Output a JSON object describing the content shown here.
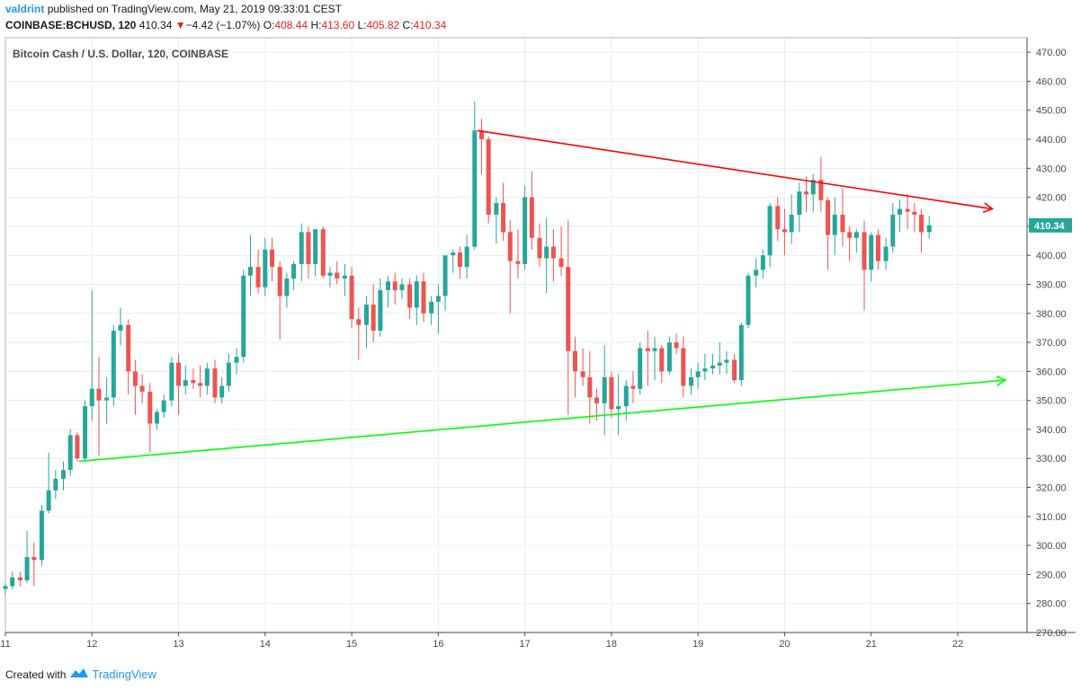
{
  "header": {
    "user": "valdrint",
    "published_text": "published on TradingView.com, May 21, 2019 09:33:01 CEST",
    "symbol": "COINBASE:BCHUSD, 120",
    "last": "410.34",
    "change_arrow": "▼",
    "change": "−4.42 (−1.07%)",
    "o_label": "O:",
    "o_value": "408.44",
    "h_label": "H:",
    "h_value": "413.60",
    "l_label": "L:",
    "l_value": "405.82",
    "c_label": "C:",
    "c_value": "410.34"
  },
  "chart_title": "Bitcoin Cash / U.S. Dollar, 120, COINBASE",
  "price_tag": "410.34",
  "footer": {
    "created_with": "Created with",
    "brand": "TradingView"
  },
  "colors": {
    "up": "#26a69a",
    "down": "#ef5350",
    "resistance": "#ff0000",
    "support": "#00ff00",
    "grid": "#e8ecef",
    "price_tag": "#26a69a"
  },
  "chart_data": {
    "type": "candlestick",
    "title": "Bitcoin Cash / U.S. Dollar, 120, COINBASE",
    "interval_minutes": 120,
    "ylim": [
      270,
      475
    ],
    "y_ticks": [
      270,
      280,
      290,
      300,
      310,
      320,
      330,
      340,
      350,
      360,
      370,
      380,
      390,
      400,
      410,
      420,
      430,
      440,
      450,
      460,
      470
    ],
    "x_tick_labels": [
      "11",
      "12",
      "13",
      "14",
      "15",
      "16",
      "17",
      "18",
      "19",
      "20",
      "21",
      "22"
    ],
    "x_tick_days": [
      11,
      12,
      13,
      14,
      15,
      16,
      17,
      18,
      19,
      20,
      21,
      22
    ],
    "x_range_days": [
      11.0,
      22.8
    ],
    "grid": true,
    "last_price": 410.34,
    "candles": [
      {
        "t": 11.0,
        "o": 285,
        "h": 287,
        "l": 283,
        "c": 286
      },
      {
        "t": 11.08,
        "o": 286,
        "h": 291,
        "l": 285,
        "c": 289
      },
      {
        "t": 11.17,
        "o": 289,
        "h": 291,
        "l": 286,
        "c": 288
      },
      {
        "t": 11.25,
        "o": 288,
        "h": 305,
        "l": 287,
        "c": 296
      },
      {
        "t": 11.33,
        "o": 296,
        "h": 301,
        "l": 286,
        "c": 295
      },
      {
        "t": 11.42,
        "o": 295,
        "h": 314,
        "l": 293,
        "c": 312
      },
      {
        "t": 11.5,
        "o": 312,
        "h": 332,
        "l": 311,
        "c": 319
      },
      {
        "t": 11.58,
        "o": 319,
        "h": 326,
        "l": 316,
        "c": 323
      },
      {
        "t": 11.67,
        "o": 323,
        "h": 329,
        "l": 319,
        "c": 326
      },
      {
        "t": 11.75,
        "o": 326,
        "h": 340,
        "l": 324,
        "c": 338
      },
      {
        "t": 11.83,
        "o": 338,
        "h": 339,
        "l": 329,
        "c": 330
      },
      {
        "t": 11.92,
        "o": 330,
        "h": 350,
        "l": 329,
        "c": 348
      },
      {
        "t": 12.0,
        "o": 348,
        "h": 388,
        "l": 343,
        "c": 354
      },
      {
        "t": 12.08,
        "o": 354,
        "h": 365,
        "l": 331,
        "c": 350
      },
      {
        "t": 12.17,
        "o": 350,
        "h": 358,
        "l": 342,
        "c": 351
      },
      {
        "t": 12.25,
        "o": 351,
        "h": 376,
        "l": 348,
        "c": 374
      },
      {
        "t": 12.33,
        "o": 374,
        "h": 382,
        "l": 369,
        "c": 376
      },
      {
        "t": 12.42,
        "o": 376,
        "h": 378,
        "l": 352,
        "c": 360
      },
      {
        "t": 12.5,
        "o": 360,
        "h": 364,
        "l": 345,
        "c": 355
      },
      {
        "t": 12.58,
        "o": 355,
        "h": 359,
        "l": 349,
        "c": 353
      },
      {
        "t": 12.67,
        "o": 353,
        "h": 356,
        "l": 332,
        "c": 342
      },
      {
        "t": 12.75,
        "o": 342,
        "h": 347,
        "l": 340,
        "c": 346
      },
      {
        "t": 12.83,
        "o": 346,
        "h": 352,
        "l": 344,
        "c": 350
      },
      {
        "t": 12.92,
        "o": 350,
        "h": 365,
        "l": 348,
        "c": 363
      },
      {
        "t": 13.0,
        "o": 363,
        "h": 366,
        "l": 345,
        "c": 355
      },
      {
        "t": 13.08,
        "o": 355,
        "h": 362,
        "l": 352,
        "c": 357
      },
      {
        "t": 13.17,
        "o": 357,
        "h": 361,
        "l": 354,
        "c": 356
      },
      {
        "t": 13.25,
        "o": 356,
        "h": 362,
        "l": 351,
        "c": 355
      },
      {
        "t": 13.33,
        "o": 355,
        "h": 363,
        "l": 352,
        "c": 361
      },
      {
        "t": 13.42,
        "o": 361,
        "h": 364,
        "l": 349,
        "c": 351
      },
      {
        "t": 13.5,
        "o": 351,
        "h": 358,
        "l": 349,
        "c": 355
      },
      {
        "t": 13.58,
        "o": 355,
        "h": 366,
        "l": 353,
        "c": 363
      },
      {
        "t": 13.67,
        "o": 363,
        "h": 368,
        "l": 359,
        "c": 365
      },
      {
        "t": 13.75,
        "o": 365,
        "h": 395,
        "l": 363,
        "c": 393
      },
      {
        "t": 13.83,
        "o": 393,
        "h": 407,
        "l": 386,
        "c": 396
      },
      {
        "t": 13.92,
        "o": 396,
        "h": 402,
        "l": 387,
        "c": 389
      },
      {
        "t": 14.0,
        "o": 389,
        "h": 406,
        "l": 386,
        "c": 402
      },
      {
        "t": 14.08,
        "o": 402,
        "h": 406,
        "l": 391,
        "c": 396
      },
      {
        "t": 14.17,
        "o": 396,
        "h": 398,
        "l": 371,
        "c": 386
      },
      {
        "t": 14.25,
        "o": 386,
        "h": 394,
        "l": 382,
        "c": 392
      },
      {
        "t": 14.33,
        "o": 392,
        "h": 398,
        "l": 388,
        "c": 397
      },
      {
        "t": 14.42,
        "o": 397,
        "h": 411,
        "l": 391,
        "c": 408
      },
      {
        "t": 14.5,
        "o": 408,
        "h": 410,
        "l": 392,
        "c": 397
      },
      {
        "t": 14.58,
        "o": 397,
        "h": 409,
        "l": 393,
        "c": 409
      },
      {
        "t": 14.67,
        "o": 409,
        "h": 410,
        "l": 392,
        "c": 393
      },
      {
        "t": 14.75,
        "o": 393,
        "h": 396,
        "l": 389,
        "c": 394
      },
      {
        "t": 14.83,
        "o": 394,
        "h": 398,
        "l": 390,
        "c": 392
      },
      {
        "t": 14.92,
        "o": 392,
        "h": 397,
        "l": 386,
        "c": 393
      },
      {
        "t": 15.0,
        "o": 393,
        "h": 396,
        "l": 375,
        "c": 378
      },
      {
        "t": 15.08,
        "o": 378,
        "h": 382,
        "l": 364,
        "c": 376
      },
      {
        "t": 15.17,
        "o": 376,
        "h": 386,
        "l": 368,
        "c": 383
      },
      {
        "t": 15.25,
        "o": 383,
        "h": 390,
        "l": 370,
        "c": 374
      },
      {
        "t": 15.33,
        "o": 374,
        "h": 392,
        "l": 372,
        "c": 388
      },
      {
        "t": 15.42,
        "o": 388,
        "h": 393,
        "l": 382,
        "c": 391
      },
      {
        "t": 15.5,
        "o": 391,
        "h": 394,
        "l": 383,
        "c": 388
      },
      {
        "t": 15.58,
        "o": 388,
        "h": 392,
        "l": 385,
        "c": 390
      },
      {
        "t": 15.67,
        "o": 390,
        "h": 392,
        "l": 378,
        "c": 382
      },
      {
        "t": 15.75,
        "o": 382,
        "h": 393,
        "l": 376,
        "c": 391
      },
      {
        "t": 15.83,
        "o": 391,
        "h": 394,
        "l": 377,
        "c": 380
      },
      {
        "t": 15.92,
        "o": 380,
        "h": 386,
        "l": 376,
        "c": 384
      },
      {
        "t": 16.0,
        "o": 384,
        "h": 390,
        "l": 373,
        "c": 386
      },
      {
        "t": 16.08,
        "o": 386,
        "h": 400,
        "l": 381,
        "c": 400
      },
      {
        "t": 16.17,
        "o": 400,
        "h": 402,
        "l": 394,
        "c": 401
      },
      {
        "t": 16.25,
        "o": 401,
        "h": 403,
        "l": 392,
        "c": 396
      },
      {
        "t": 16.33,
        "o": 396,
        "h": 407,
        "l": 392,
        "c": 403
      },
      {
        "t": 16.42,
        "o": 403,
        "h": 453,
        "l": 402,
        "c": 443
      },
      {
        "t": 16.5,
        "o": 443,
        "h": 447,
        "l": 428,
        "c": 440
      },
      {
        "t": 16.58,
        "o": 440,
        "h": 441,
        "l": 411,
        "c": 414
      },
      {
        "t": 16.67,
        "o": 414,
        "h": 420,
        "l": 404,
        "c": 418
      },
      {
        "t": 16.75,
        "o": 418,
        "h": 425,
        "l": 405,
        "c": 408
      },
      {
        "t": 16.83,
        "o": 408,
        "h": 412,
        "l": 380,
        "c": 398
      },
      {
        "t": 16.92,
        "o": 398,
        "h": 409,
        "l": 392,
        "c": 397
      },
      {
        "t": 17.0,
        "o": 397,
        "h": 424,
        "l": 395,
        "c": 420
      },
      {
        "t": 17.08,
        "o": 420,
        "h": 429,
        "l": 402,
        "c": 406
      },
      {
        "t": 17.17,
        "o": 406,
        "h": 411,
        "l": 396,
        "c": 399
      },
      {
        "t": 17.25,
        "o": 399,
        "h": 413,
        "l": 387,
        "c": 403
      },
      {
        "t": 17.33,
        "o": 403,
        "h": 409,
        "l": 391,
        "c": 399
      },
      {
        "t": 17.42,
        "o": 399,
        "h": 410,
        "l": 393,
        "c": 396
      },
      {
        "t": 17.5,
        "o": 396,
        "h": 412,
        "l": 345,
        "c": 367
      },
      {
        "t": 17.58,
        "o": 367,
        "h": 372,
        "l": 351,
        "c": 360
      },
      {
        "t": 17.67,
        "o": 360,
        "h": 368,
        "l": 355,
        "c": 358
      },
      {
        "t": 17.75,
        "o": 358,
        "h": 367,
        "l": 342,
        "c": 351
      },
      {
        "t": 17.83,
        "o": 351,
        "h": 354,
        "l": 343,
        "c": 349
      },
      {
        "t": 17.92,
        "o": 349,
        "h": 369,
        "l": 338,
        "c": 358
      },
      {
        "t": 18.0,
        "o": 358,
        "h": 360,
        "l": 344,
        "c": 347
      },
      {
        "t": 18.08,
        "o": 347,
        "h": 359,
        "l": 338,
        "c": 348
      },
      {
        "t": 18.17,
        "o": 348,
        "h": 357,
        "l": 343,
        "c": 355
      },
      {
        "t": 18.25,
        "o": 355,
        "h": 360,
        "l": 349,
        "c": 354
      },
      {
        "t": 18.33,
        "o": 354,
        "h": 370,
        "l": 352,
        "c": 368
      },
      {
        "t": 18.42,
        "o": 368,
        "h": 374,
        "l": 355,
        "c": 367
      },
      {
        "t": 18.5,
        "o": 367,
        "h": 372,
        "l": 357,
        "c": 368
      },
      {
        "t": 18.58,
        "o": 368,
        "h": 369,
        "l": 356,
        "c": 360
      },
      {
        "t": 18.67,
        "o": 360,
        "h": 372,
        "l": 359,
        "c": 370
      },
      {
        "t": 18.75,
        "o": 370,
        "h": 373,
        "l": 366,
        "c": 368
      },
      {
        "t": 18.83,
        "o": 368,
        "h": 372,
        "l": 351,
        "c": 355
      },
      {
        "t": 18.92,
        "o": 355,
        "h": 361,
        "l": 352,
        "c": 358
      },
      {
        "t": 19.0,
        "o": 358,
        "h": 363,
        "l": 354,
        "c": 360
      },
      {
        "t": 19.08,
        "o": 360,
        "h": 366,
        "l": 357,
        "c": 361
      },
      {
        "t": 19.17,
        "o": 361,
        "h": 366,
        "l": 359,
        "c": 362
      },
      {
        "t": 19.25,
        "o": 362,
        "h": 370,
        "l": 359,
        "c": 363
      },
      {
        "t": 19.33,
        "o": 363,
        "h": 367,
        "l": 359,
        "c": 364
      },
      {
        "t": 19.42,
        "o": 364,
        "h": 366,
        "l": 356,
        "c": 357
      },
      {
        "t": 19.5,
        "o": 357,
        "h": 377,
        "l": 355,
        "c": 376
      },
      {
        "t": 19.58,
        "o": 376,
        "h": 394,
        "l": 375,
        "c": 393
      },
      {
        "t": 19.67,
        "o": 393,
        "h": 399,
        "l": 389,
        "c": 395
      },
      {
        "t": 19.75,
        "o": 395,
        "h": 402,
        "l": 392,
        "c": 400
      },
      {
        "t": 19.83,
        "o": 400,
        "h": 418,
        "l": 396,
        "c": 417
      },
      {
        "t": 19.92,
        "o": 417,
        "h": 420,
        "l": 405,
        "c": 409
      },
      {
        "t": 20.0,
        "o": 409,
        "h": 416,
        "l": 400,
        "c": 408
      },
      {
        "t": 20.08,
        "o": 408,
        "h": 421,
        "l": 404,
        "c": 414
      },
      {
        "t": 20.17,
        "o": 414,
        "h": 425,
        "l": 408,
        "c": 422
      },
      {
        "t": 20.25,
        "o": 422,
        "h": 427,
        "l": 415,
        "c": 421
      },
      {
        "t": 20.33,
        "o": 421,
        "h": 428,
        "l": 415,
        "c": 426
      },
      {
        "t": 20.42,
        "o": 426,
        "h": 434,
        "l": 415,
        "c": 419
      },
      {
        "t": 20.5,
        "o": 419,
        "h": 420,
        "l": 395,
        "c": 407
      },
      {
        "t": 20.58,
        "o": 407,
        "h": 420,
        "l": 400,
        "c": 414
      },
      {
        "t": 20.67,
        "o": 414,
        "h": 423,
        "l": 403,
        "c": 408
      },
      {
        "t": 20.75,
        "o": 408,
        "h": 410,
        "l": 398,
        "c": 406
      },
      {
        "t": 20.83,
        "o": 406,
        "h": 409,
        "l": 401,
        "c": 408
      },
      {
        "t": 20.92,
        "o": 408,
        "h": 412,
        "l": 381,
        "c": 395
      },
      {
        "t": 21.0,
        "o": 395,
        "h": 408,
        "l": 391,
        "c": 407
      },
      {
        "t": 21.08,
        "o": 407,
        "h": 409,
        "l": 395,
        "c": 398
      },
      {
        "t": 21.17,
        "o": 398,
        "h": 406,
        "l": 395,
        "c": 403
      },
      {
        "t": 21.25,
        "o": 403,
        "h": 418,
        "l": 401,
        "c": 414
      },
      {
        "t": 21.33,
        "o": 414,
        "h": 419,
        "l": 408,
        "c": 416
      },
      {
        "t": 21.42,
        "o": 416,
        "h": 421,
        "l": 409,
        "c": 415
      },
      {
        "t": 21.5,
        "o": 415,
        "h": 418,
        "l": 408,
        "c": 414
      },
      {
        "t": 21.58,
        "o": 414,
        "h": 416,
        "l": 401,
        "c": 408
      },
      {
        "t": 21.67,
        "o": 408,
        "h": 413.6,
        "l": 405.82,
        "c": 410.34
      }
    ],
    "trendlines": [
      {
        "name": "resistance",
        "color": "#ff0000",
        "from": {
          "t": 16.45,
          "p": 443
        },
        "to": {
          "t": 22.4,
          "p": 416
        },
        "arrow": true
      },
      {
        "name": "support",
        "color": "#00ff00",
        "from": {
          "t": 11.85,
          "p": 329
        },
        "to": {
          "t": 22.55,
          "p": 357
        },
        "arrow": true
      }
    ]
  }
}
